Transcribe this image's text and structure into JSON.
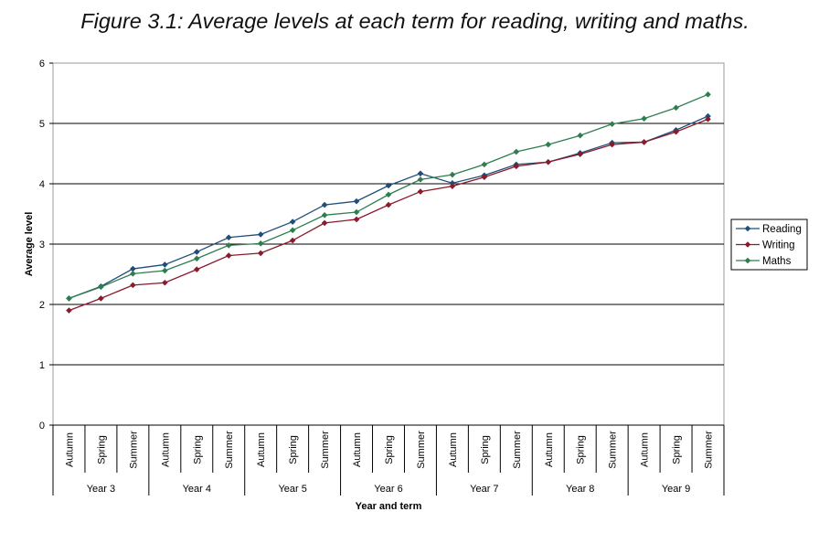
{
  "chart_data": {
    "type": "line",
    "title": "Figure 3.1: Average levels at each term for reading, writing and maths.",
    "xlabel": "Year and term",
    "ylabel": "Average level",
    "ylim": [
      0,
      6
    ],
    "yticks": [
      "0",
      "1",
      "2",
      "3",
      "4",
      "5",
      "6"
    ],
    "grid": true,
    "legend_position": "right",
    "terms": [
      "Autumn",
      "Spring",
      "Summer"
    ],
    "groups": [
      "Year 3",
      "Year 4",
      "Year 5",
      "Year 6",
      "Year 7",
      "Year 8",
      "Year 9"
    ],
    "series": [
      {
        "name": "Reading",
        "color": "#1f4e79",
        "values": [
          2.1,
          2.3,
          2.59,
          2.66,
          2.87,
          3.11,
          3.16,
          3.37,
          3.65,
          3.71,
          3.97,
          4.17,
          4.01,
          4.14,
          4.32,
          4.36,
          4.51,
          4.68,
          4.69,
          4.89,
          5.12
        ]
      },
      {
        "name": "Writing",
        "color": "#8b1a2b",
        "values": [
          1.9,
          2.1,
          2.32,
          2.36,
          2.58,
          2.81,
          2.85,
          3.06,
          3.35,
          3.41,
          3.65,
          3.87,
          3.96,
          4.11,
          4.29,
          4.36,
          4.49,
          4.65,
          4.69,
          4.86,
          5.07
        ]
      },
      {
        "name": "Maths",
        "color": "#2e7d4f",
        "values": [
          2.1,
          2.29,
          2.51,
          2.56,
          2.76,
          2.98,
          3.01,
          3.23,
          3.48,
          3.53,
          3.82,
          4.07,
          4.15,
          4.32,
          4.53,
          4.65,
          4.8,
          4.99,
          5.08,
          5.26,
          5.48
        ]
      }
    ]
  }
}
